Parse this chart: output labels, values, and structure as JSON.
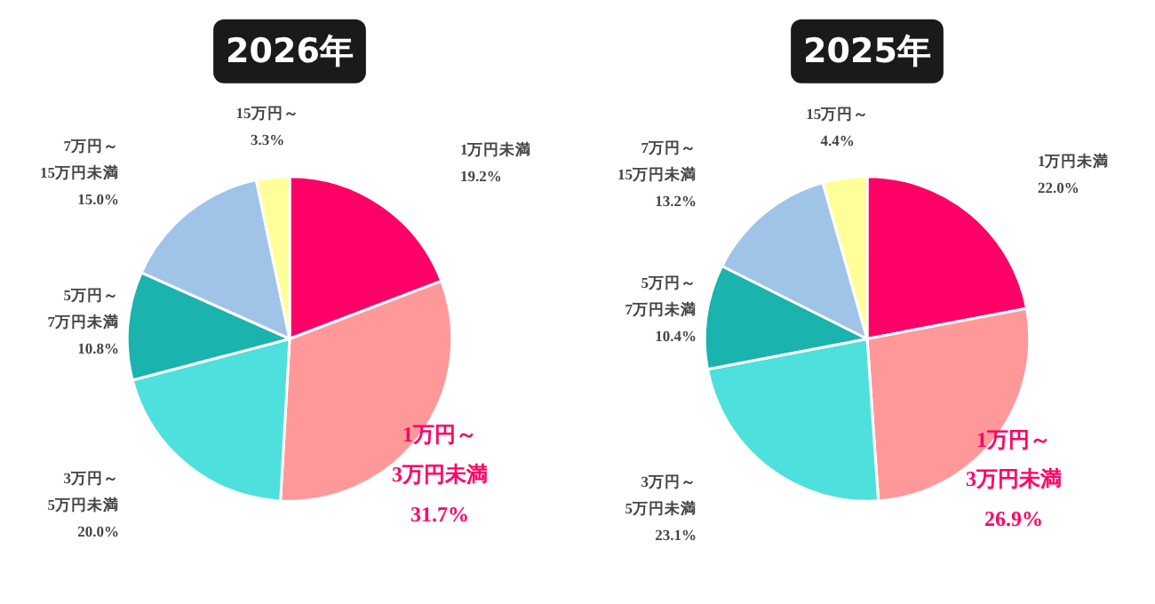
{
  "chart_data": [
    {
      "type": "pie",
      "title": "2026年",
      "categories": [
        "1万円未満",
        "1万円～\n3万円未満",
        "3万円～\n5万円未満",
        "5万円～\n7万円未満",
        "7万円～\n15万円未満",
        "15万円～"
      ],
      "values": [
        19.2,
        31.7,
        20.0,
        10.8,
        15.0,
        3.3
      ],
      "value_labels": [
        "19.2%",
        "31.7%",
        "20.0%",
        "10.8%",
        "15.0%",
        "3.3%"
      ],
      "colors": [
        "#ff0066",
        "#ff9999",
        "#4de0dc",
        "#1ab3ae",
        "#9fc4e8",
        "#ffff99"
      ]
    },
    {
      "type": "pie",
      "title": "2025年",
      "categories": [
        "1万円未満",
        "1万円～\n3万円未満",
        "3万円～\n5万円未満",
        "5万円～\n7万円未満",
        "7万円～\n15万円未満",
        "15万円～"
      ],
      "values": [
        22.0,
        26.9,
        23.1,
        10.4,
        13.2,
        4.4
      ],
      "value_labels": [
        "22.0%",
        "26.9%",
        "23.1%",
        "10.4%",
        "13.2%",
        "4.4%"
      ],
      "colors": [
        "#ff0066",
        "#ff9999",
        "#4de0dc",
        "#1ab3ae",
        "#9fc4e8",
        "#ffff99"
      ]
    }
  ]
}
